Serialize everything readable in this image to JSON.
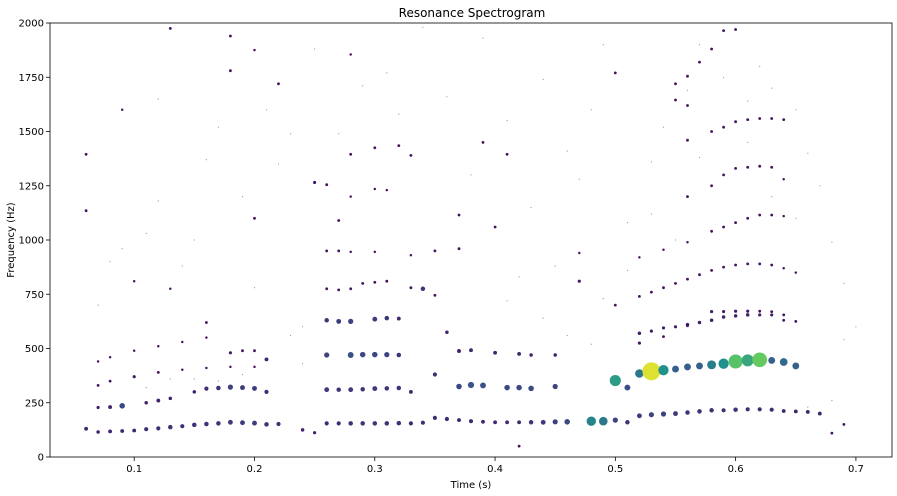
{
  "chart_data": {
    "type": "scatter",
    "title": "Resonance Spectrogram",
    "xlabel": "Time (s)",
    "ylabel": "Frequency (Hz)",
    "xlim": [
      0.03,
      0.73
    ],
    "ylim": [
      0,
      2000
    ],
    "xticks": [
      "0.1",
      "0.2",
      "0.3",
      "0.4",
      "0.5",
      "0.6",
      "0.7"
    ],
    "xtick_values": [
      0.1,
      0.2,
      0.3,
      0.4,
      0.5,
      0.6,
      0.7
    ],
    "yticks": [
      "0",
      "250",
      "500",
      "750",
      "1000",
      "1250",
      "1500",
      "1750",
      "2000"
    ],
    "ytick_values": [
      0,
      250,
      500,
      750,
      1000,
      1250,
      1500,
      1750,
      2000
    ],
    "grid": false,
    "colormap": "viridis",
    "color_range": [
      0,
      1
    ],
    "points": [
      [
        0.06,
        130,
        0.12
      ],
      [
        0.07,
        115,
        0.1
      ],
      [
        0.08,
        118,
        0.12
      ],
      [
        0.09,
        120,
        0.12
      ],
      [
        0.1,
        122,
        0.12
      ],
      [
        0.11,
        128,
        0.14
      ],
      [
        0.12,
        132,
        0.14
      ],
      [
        0.13,
        138,
        0.16
      ],
      [
        0.14,
        142,
        0.14
      ],
      [
        0.15,
        148,
        0.16
      ],
      [
        0.16,
        152,
        0.16
      ],
      [
        0.17,
        155,
        0.16
      ],
      [
        0.18,
        160,
        0.18
      ],
      [
        0.19,
        158,
        0.18
      ],
      [
        0.2,
        156,
        0.18
      ],
      [
        0.21,
        150,
        0.16
      ],
      [
        0.22,
        152,
        0.14
      ],
      [
        0.24,
        125,
        0.1
      ],
      [
        0.25,
        112,
        0.08
      ],
      [
        0.26,
        155,
        0.14
      ],
      [
        0.27,
        155,
        0.14
      ],
      [
        0.28,
        155,
        0.16
      ],
      [
        0.29,
        155,
        0.16
      ],
      [
        0.3,
        155,
        0.16
      ],
      [
        0.31,
        155,
        0.16
      ],
      [
        0.32,
        156,
        0.16
      ],
      [
        0.33,
        155,
        0.14
      ],
      [
        0.34,
        158,
        0.14
      ],
      [
        0.35,
        180,
        0.14
      ],
      [
        0.36,
        175,
        0.14
      ],
      [
        0.37,
        170,
        0.12
      ],
      [
        0.38,
        165,
        0.14
      ],
      [
        0.39,
        162,
        0.12
      ],
      [
        0.4,
        160,
        0.12
      ],
      [
        0.41,
        160,
        0.12
      ],
      [
        0.42,
        160,
        0.12
      ],
      [
        0.43,
        160,
        0.16
      ],
      [
        0.44,
        160,
        0.18
      ],
      [
        0.45,
        162,
        0.2
      ],
      [
        0.46,
        162,
        0.22
      ],
      [
        0.48,
        165,
        0.45
      ],
      [
        0.49,
        165,
        0.4
      ],
      [
        0.5,
        170,
        0.2
      ],
      [
        0.51,
        160,
        0.16
      ],
      [
        0.52,
        190,
        0.18
      ],
      [
        0.53,
        195,
        0.2
      ],
      [
        0.54,
        198,
        0.2
      ],
      [
        0.55,
        200,
        0.18
      ],
      [
        0.56,
        205,
        0.16
      ],
      [
        0.57,
        210,
        0.16
      ],
      [
        0.58,
        215,
        0.16
      ],
      [
        0.59,
        215,
        0.14
      ],
      [
        0.6,
        218,
        0.16
      ],
      [
        0.61,
        220,
        0.14
      ],
      [
        0.62,
        220,
        0.14
      ],
      [
        0.63,
        218,
        0.14
      ],
      [
        0.64,
        212,
        0.12
      ],
      [
        0.65,
        210,
        0.12
      ],
      [
        0.66,
        208,
        0.12
      ],
      [
        0.67,
        200,
        0.12
      ],
      [
        0.68,
        110,
        0.06
      ],
      [
        0.69,
        150,
        0.06
      ],
      [
        0.07,
        228,
        0.08
      ],
      [
        0.08,
        230,
        0.12
      ],
      [
        0.09,
        236,
        0.22
      ],
      [
        0.11,
        250,
        0.1
      ],
      [
        0.12,
        260,
        0.12
      ],
      [
        0.13,
        270,
        0.1
      ],
      [
        0.15,
        300,
        0.1
      ],
      [
        0.16,
        315,
        0.14
      ],
      [
        0.17,
        318,
        0.16
      ],
      [
        0.18,
        322,
        0.2
      ],
      [
        0.19,
        320,
        0.18
      ],
      [
        0.2,
        316,
        0.18
      ],
      [
        0.21,
        300,
        0.14
      ],
      [
        0.26,
        310,
        0.18
      ],
      [
        0.27,
        310,
        0.16
      ],
      [
        0.28,
        310,
        0.18
      ],
      [
        0.29,
        312,
        0.16
      ],
      [
        0.3,
        315,
        0.18
      ],
      [
        0.31,
        316,
        0.16
      ],
      [
        0.32,
        318,
        0.16
      ],
      [
        0.33,
        300,
        0.12
      ],
      [
        0.35,
        380,
        0.14
      ],
      [
        0.37,
        325,
        0.22
      ],
      [
        0.38,
        332,
        0.26
      ],
      [
        0.39,
        330,
        0.24
      ],
      [
        0.41,
        320,
        0.22
      ],
      [
        0.42,
        320,
        0.22
      ],
      [
        0.43,
        316,
        0.22
      ],
      [
        0.45,
        325,
        0.2
      ],
      [
        0.5,
        352,
        0.55
      ],
      [
        0.51,
        320,
        0.24
      ],
      [
        0.52,
        385,
        0.4
      ],
      [
        0.53,
        395,
        0.95
      ],
      [
        0.54,
        400,
        0.5
      ],
      [
        0.55,
        405,
        0.3
      ],
      [
        0.56,
        415,
        0.3
      ],
      [
        0.57,
        420,
        0.3
      ],
      [
        0.58,
        425,
        0.42
      ],
      [
        0.59,
        430,
        0.5
      ],
      [
        0.6,
        440,
        0.72
      ],
      [
        0.61,
        445,
        0.6
      ],
      [
        0.62,
        448,
        0.76
      ],
      [
        0.63,
        445,
        0.3
      ],
      [
        0.64,
        438,
        0.35
      ],
      [
        0.65,
        420,
        0.3
      ],
      [
        0.07,
        330,
        0.06
      ],
      [
        0.08,
        350,
        0.06
      ],
      [
        0.1,
        370,
        0.08
      ],
      [
        0.12,
        390,
        0.06
      ],
      [
        0.14,
        402,
        0.04
      ],
      [
        0.16,
        410,
        0.04
      ],
      [
        0.18,
        415,
        0.04
      ],
      [
        0.2,
        415,
        0.04
      ],
      [
        0.21,
        450,
        0.12
      ],
      [
        0.26,
        470,
        0.2
      ],
      [
        0.28,
        470,
        0.24
      ],
      [
        0.29,
        472,
        0.22
      ],
      [
        0.3,
        472,
        0.22
      ],
      [
        0.31,
        472,
        0.2
      ],
      [
        0.32,
        470,
        0.16
      ],
      [
        0.37,
        488,
        0.12
      ],
      [
        0.38,
        492,
        0.12
      ],
      [
        0.4,
        480,
        0.12
      ],
      [
        0.42,
        475,
        0.12
      ],
      [
        0.43,
        470,
        0.1
      ],
      [
        0.45,
        470,
        0.1
      ],
      [
        0.52,
        570,
        0.1
      ],
      [
        0.53,
        580,
        0.08
      ],
      [
        0.54,
        595,
        0.08
      ],
      [
        0.55,
        600,
        0.08
      ],
      [
        0.56,
        610,
        0.1
      ],
      [
        0.57,
        620,
        0.1
      ],
      [
        0.58,
        630,
        0.1
      ],
      [
        0.59,
        645,
        0.1
      ],
      [
        0.6,
        650,
        0.1
      ],
      [
        0.61,
        655,
        0.1
      ],
      [
        0.62,
        655,
        0.08
      ],
      [
        0.63,
        655,
        0.08
      ],
      [
        0.64,
        630,
        0.06
      ],
      [
        0.65,
        625,
        0.06
      ],
      [
        0.07,
        440,
        0.04
      ],
      [
        0.08,
        460,
        0.04
      ],
      [
        0.1,
        490,
        0.04
      ],
      [
        0.12,
        510,
        0.04
      ],
      [
        0.14,
        530,
        0.04
      ],
      [
        0.16,
        550,
        0.04
      ],
      [
        0.18,
        480,
        0.08
      ],
      [
        0.19,
        490,
        0.06
      ],
      [
        0.2,
        490,
        0.06
      ],
      [
        0.26,
        630,
        0.16
      ],
      [
        0.27,
        625,
        0.18
      ],
      [
        0.28,
        625,
        0.2
      ],
      [
        0.3,
        635,
        0.18
      ],
      [
        0.31,
        640,
        0.16
      ],
      [
        0.32,
        638,
        0.12
      ],
      [
        0.34,
        775,
        0.16
      ],
      [
        0.36,
        575,
        0.1
      ],
      [
        0.37,
        490,
        0.08
      ],
      [
        0.52,
        525,
        0.08
      ],
      [
        0.54,
        555,
        0.06
      ],
      [
        0.56,
        605,
        0.06
      ],
      [
        0.58,
        670,
        0.08
      ],
      [
        0.59,
        670,
        0.08
      ],
      [
        0.6,
        672,
        0.08
      ],
      [
        0.61,
        672,
        0.08
      ],
      [
        0.62,
        672,
        0.06
      ],
      [
        0.63,
        670,
        0.06
      ],
      [
        0.64,
        655,
        0.06
      ],
      [
        0.1,
        810,
        0.04
      ],
      [
        0.13,
        775,
        0.04
      ],
      [
        0.16,
        620,
        0.06
      ],
      [
        0.26,
        775,
        0.06
      ],
      [
        0.27,
        770,
        0.06
      ],
      [
        0.28,
        775,
        0.06
      ],
      [
        0.29,
        800,
        0.06
      ],
      [
        0.3,
        805,
        0.06
      ],
      [
        0.31,
        810,
        0.06
      ],
      [
        0.33,
        780,
        0.06
      ],
      [
        0.35,
        745,
        0.06
      ],
      [
        0.47,
        810,
        0.08
      ],
      [
        0.5,
        700,
        0.06
      ],
      [
        0.52,
        740,
        0.06
      ],
      [
        0.53,
        760,
        0.06
      ],
      [
        0.54,
        780,
        0.06
      ],
      [
        0.55,
        800,
        0.06
      ],
      [
        0.56,
        820,
        0.06
      ],
      [
        0.57,
        840,
        0.06
      ],
      [
        0.58,
        860,
        0.06
      ],
      [
        0.59,
        875,
        0.06
      ],
      [
        0.6,
        885,
        0.06
      ],
      [
        0.61,
        890,
        0.06
      ],
      [
        0.62,
        890,
        0.06
      ],
      [
        0.63,
        885,
        0.06
      ],
      [
        0.64,
        870,
        0.04
      ],
      [
        0.65,
        850,
        0.04
      ],
      [
        0.26,
        950,
        0.06
      ],
      [
        0.27,
        950,
        0.06
      ],
      [
        0.28,
        945,
        0.04
      ],
      [
        0.3,
        945,
        0.04
      ],
      [
        0.33,
        930,
        0.04
      ],
      [
        0.35,
        950,
        0.06
      ],
      [
        0.37,
        960,
        0.06
      ],
      [
        0.4,
        1060,
        0.06
      ],
      [
        0.47,
        940,
        0.04
      ],
      [
        0.52,
        920,
        0.04
      ],
      [
        0.54,
        955,
        0.04
      ],
      [
        0.56,
        990,
        0.04
      ],
      [
        0.58,
        1040,
        0.06
      ],
      [
        0.59,
        1060,
        0.06
      ],
      [
        0.6,
        1080,
        0.06
      ],
      [
        0.61,
        1100,
        0.06
      ],
      [
        0.62,
        1115,
        0.06
      ],
      [
        0.63,
        1115,
        0.06
      ],
      [
        0.64,
        1110,
        0.04
      ],
      [
        0.06,
        1135,
        0.06
      ],
      [
        0.2,
        1100,
        0.06
      ],
      [
        0.25,
        1265,
        0.08
      ],
      [
        0.26,
        1255,
        0.06
      ],
      [
        0.27,
        1090,
        0.06
      ],
      [
        0.28,
        1200,
        0.04
      ],
      [
        0.3,
        1235,
        0.04
      ],
      [
        0.31,
        1230,
        0.04
      ],
      [
        0.37,
        1115,
        0.06
      ],
      [
        0.56,
        1200,
        0.06
      ],
      [
        0.58,
        1250,
        0.06
      ],
      [
        0.59,
        1300,
        0.06
      ],
      [
        0.6,
        1330,
        0.06
      ],
      [
        0.61,
        1335,
        0.06
      ],
      [
        0.62,
        1340,
        0.06
      ],
      [
        0.63,
        1335,
        0.06
      ],
      [
        0.64,
        1280,
        0.04
      ],
      [
        0.06,
        1395,
        0.06
      ],
      [
        0.28,
        1395,
        0.06
      ],
      [
        0.3,
        1425,
        0.06
      ],
      [
        0.32,
        1435,
        0.06
      ],
      [
        0.33,
        1390,
        0.06
      ],
      [
        0.39,
        1450,
        0.06
      ],
      [
        0.41,
        1395,
        0.06
      ],
      [
        0.56,
        1460,
        0.06
      ],
      [
        0.58,
        1500,
        0.06
      ],
      [
        0.59,
        1520,
        0.06
      ],
      [
        0.6,
        1545,
        0.06
      ],
      [
        0.61,
        1555,
        0.06
      ],
      [
        0.62,
        1560,
        0.06
      ],
      [
        0.63,
        1560,
        0.06
      ],
      [
        0.64,
        1555,
        0.06
      ],
      [
        0.09,
        1600,
        0.04
      ],
      [
        0.18,
        1780,
        0.06
      ],
      [
        0.22,
        1720,
        0.06
      ],
      [
        0.28,
        1855,
        0.04
      ],
      [
        0.55,
        1720,
        0.06
      ],
      [
        0.56,
        1755,
        0.06
      ],
      [
        0.57,
        1820,
        0.06
      ],
      [
        0.58,
        1880,
        0.06
      ],
      [
        0.59,
        1965,
        0.06
      ],
      [
        0.6,
        1970,
        0.06
      ],
      [
        0.5,
        1770,
        0.06
      ],
      [
        0.13,
        1975,
        0.06
      ],
      [
        0.18,
        1940,
        0.06
      ],
      [
        0.2,
        1875,
        0.04
      ],
      [
        0.55,
        1645,
        0.06
      ],
      [
        0.56,
        1620,
        0.06
      ],
      [
        0.42,
        50,
        0.06
      ]
    ],
    "faint_points": [
      [
        0.07,
        700
      ],
      [
        0.08,
        900
      ],
      [
        0.09,
        960
      ],
      [
        0.11,
        1030
      ],
      [
        0.12,
        1180
      ],
      [
        0.12,
        1650
      ],
      [
        0.14,
        880
      ],
      [
        0.15,
        1000
      ],
      [
        0.16,
        1370
      ],
      [
        0.17,
        1520
      ],
      [
        0.19,
        1200
      ],
      [
        0.2,
        780
      ],
      [
        0.21,
        1600
      ],
      [
        0.22,
        1350
      ],
      [
        0.23,
        1490
      ],
      [
        0.24,
        600
      ],
      [
        0.25,
        1880
      ],
      [
        0.27,
        1490
      ],
      [
        0.29,
        1710
      ],
      [
        0.31,
        1770
      ],
      [
        0.32,
        1580
      ],
      [
        0.34,
        1980
      ],
      [
        0.36,
        1660
      ],
      [
        0.38,
        1300
      ],
      [
        0.39,
        1930
      ],
      [
        0.41,
        1550
      ],
      [
        0.43,
        1150
      ],
      [
        0.44,
        1740
      ],
      [
        0.45,
        880
      ],
      [
        0.46,
        1410
      ],
      [
        0.47,
        1280
      ],
      [
        0.48,
        1600
      ],
      [
        0.49,
        1900
      ],
      [
        0.51,
        1080
      ],
      [
        0.53,
        1360
      ],
      [
        0.54,
        1520
      ],
      [
        0.56,
        1690
      ],
      [
        0.57,
        1900
      ],
      [
        0.59,
        1750
      ],
      [
        0.61,
        1450
      ],
      [
        0.63,
        1700
      ],
      [
        0.65,
        1600
      ],
      [
        0.66,
        1400
      ],
      [
        0.67,
        1250
      ],
      [
        0.68,
        990
      ],
      [
        0.69,
        800
      ],
      [
        0.7,
        600
      ],
      [
        0.66,
        230
      ],
      [
        0.68,
        260
      ],
      [
        0.11,
        320
      ],
      [
        0.13,
        360
      ],
      [
        0.15,
        360
      ],
      [
        0.17,
        350
      ],
      [
        0.19,
        380
      ],
      [
        0.24,
        430
      ],
      [
        0.23,
        560
      ],
      [
        0.41,
        720
      ],
      [
        0.42,
        830
      ],
      [
        0.44,
        640
      ],
      [
        0.46,
        560
      ],
      [
        0.48,
        520
      ],
      [
        0.49,
        730
      ],
      [
        0.51,
        860
      ],
      [
        0.53,
        1120
      ],
      [
        0.55,
        1000
      ],
      [
        0.57,
        1380
      ],
      [
        0.61,
        1640
      ],
      [
        0.62,
        1800
      ],
      [
        0.63,
        1200
      ],
      [
        0.65,
        1100
      ],
      [
        0.69,
        540
      ]
    ]
  }
}
